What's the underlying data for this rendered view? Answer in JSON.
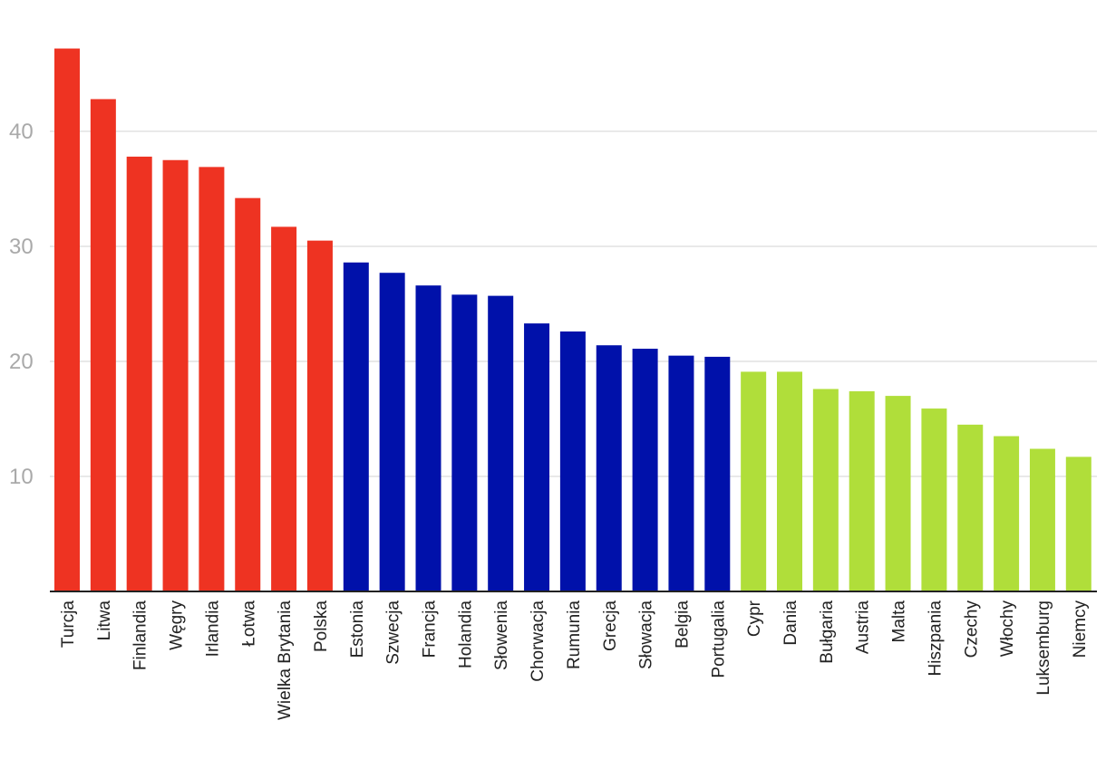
{
  "chart_data": {
    "type": "bar",
    "categories": [
      "Turcja",
      "Litwa",
      "Finlandia",
      "Węgry",
      "Irlandia",
      "Łotwa",
      "Wielka Brytania",
      "Polska",
      "Estonia",
      "Szwecja",
      "Francja",
      "Holandia",
      "Słowenia",
      "Chorwacja",
      "Rumunia",
      "Grecja",
      "Słowacja",
      "Belgia",
      "Portugalia",
      "Cypr",
      "Dania",
      "Bułgaria",
      "Austria",
      "Malta",
      "Hiszpania",
      "Czechy",
      "Włochy",
      "Luksemburg",
      "Niemcy"
    ],
    "values": [
      47.2,
      42.8,
      37.8,
      37.5,
      36.9,
      34.2,
      31.7,
      30.5,
      28.6,
      27.7,
      26.6,
      25.8,
      25.7,
      23.3,
      22.6,
      21.4,
      21.1,
      20.5,
      20.4,
      19.1,
      19.1,
      17.6,
      17.4,
      17.0,
      15.9,
      14.5,
      13.5,
      12.4,
      11.7
    ],
    "group_colors": [
      "#ee3322",
      "#ee3322",
      "#ee3322",
      "#ee3322",
      "#ee3322",
      "#ee3322",
      "#ee3322",
      "#ee3322",
      "#0011aa",
      "#0011aa",
      "#0011aa",
      "#0011aa",
      "#0011aa",
      "#0011aa",
      "#0011aa",
      "#0011aa",
      "#0011aa",
      "#0011aa",
      "#0011aa",
      "#b0de3a",
      "#b0de3a",
      "#b0de3a",
      "#b0de3a",
      "#b0de3a",
      "#b0de3a",
      "#b0de3a",
      "#b0de3a",
      "#b0de3a",
      "#b0de3a"
    ],
    "y_ticks": [
      10,
      20,
      30,
      40
    ],
    "ylim": [
      0,
      50
    ],
    "grid": true,
    "title": "",
    "xlabel": "",
    "ylabel": ""
  }
}
